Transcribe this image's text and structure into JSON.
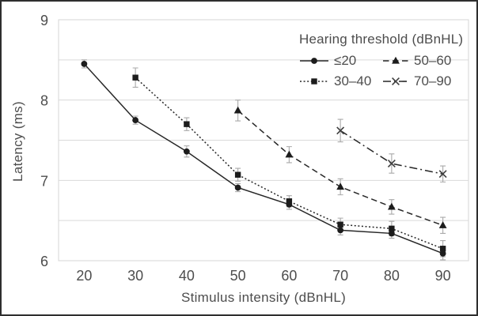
{
  "chart_data": {
    "type": "line",
    "title": "",
    "xlabel": "Stimulus intensity (dBnHL)",
    "ylabel": "Latency (ms)",
    "legend_title": "Hearing threshold (dBnHL)",
    "legend_position": "top-right-inside",
    "grid": "horizontal",
    "x_categories": [
      20,
      30,
      40,
      50,
      60,
      70,
      80,
      90
    ],
    "ylim": [
      6,
      9
    ],
    "y_major_ticks": [
      9,
      8,
      7,
      6
    ],
    "y_gridline_step": 0.5,
    "series": [
      {
        "name": "≤20",
        "marker": "circle",
        "line_style": "solid",
        "x": [
          20,
          30,
          40,
          50,
          60,
          70,
          80,
          90
        ],
        "y": [
          8.45,
          7.75,
          7.36,
          6.91,
          6.7,
          6.38,
          6.34,
          6.09
        ],
        "err": [
          0.05,
          0.05,
          0.07,
          0.05,
          0.06,
          0.06,
          0.06,
          0.08
        ]
      },
      {
        "name": "30–40",
        "marker": "square",
        "line_style": "dotted",
        "x": [
          30,
          40,
          50,
          60,
          70,
          80,
          90
        ],
        "y": [
          8.28,
          7.7,
          7.07,
          6.74,
          6.45,
          6.4,
          6.15
        ],
        "err": [
          0.12,
          0.08,
          0.08,
          0.07,
          0.08,
          0.09,
          0.1
        ]
      },
      {
        "name": "50–60",
        "marker": "triangle",
        "line_style": "dashed",
        "x": [
          50,
          60,
          70,
          80,
          90
        ],
        "y": [
          7.87,
          7.32,
          6.92,
          6.67,
          6.44
        ],
        "err": [
          0.13,
          0.1,
          0.1,
          0.09,
          0.1
        ]
      },
      {
        "name": "70–90",
        "marker": "x",
        "line_style": "dashdot",
        "x": [
          70,
          80,
          90
        ],
        "y": [
          7.62,
          7.21,
          7.08
        ],
        "err": [
          0.14,
          0.12,
          0.1
        ]
      }
    ],
    "colors": {
      "line": "#262626",
      "marker": "#1c1c1c",
      "x_marker": "#3f3f3f",
      "error_bar": "#a9a9a9",
      "gridline": "#dadada",
      "plot_border": "#d5d5d5",
      "text": "#4d4d4d",
      "frame_border": "#2e2e2e"
    }
  }
}
